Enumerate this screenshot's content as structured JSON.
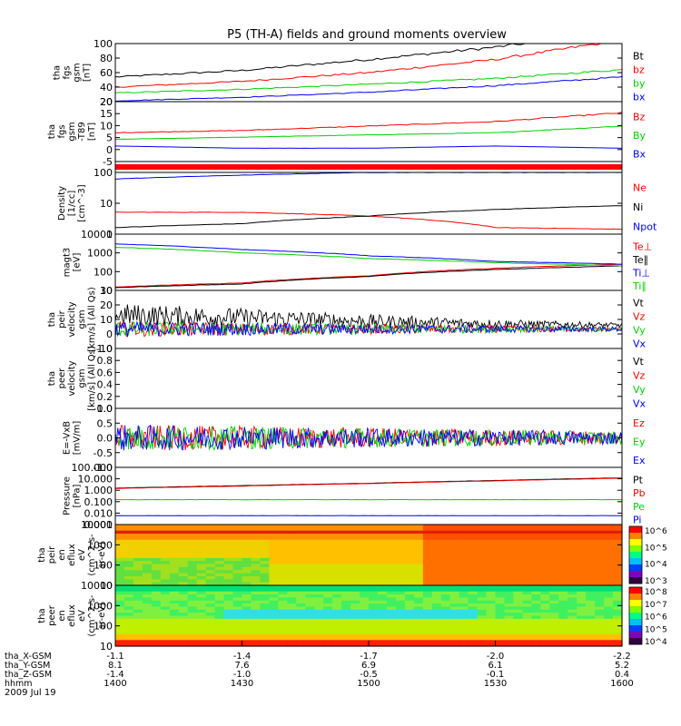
{
  "title": "P5 (TH-A) fields and ground moments overview",
  "colors": {
    "black": "#000000",
    "red": "#ff0000",
    "green": "#00d000",
    "blue": "#0000ff"
  },
  "panels": [
    {
      "id": "fgs",
      "ylabel": [
        "tha",
        "fgs",
        "gsm",
        "[nT]"
      ],
      "yticks": [
        "20",
        "40",
        "60",
        "80",
        "100"
      ],
      "legend": [
        {
          "label": "Bt",
          "color": "black"
        },
        {
          "label": "bz",
          "color": "red"
        },
        {
          "label": "by",
          "color": "green"
        },
        {
          "label": "bx",
          "color": "blue"
        }
      ]
    },
    {
      "id": "fgs_t89",
      "ylabel": [
        "tha",
        "fgs",
        "gsm",
        "-T89",
        "[nT]"
      ],
      "yticks": [
        "-5",
        "0",
        "5",
        "10",
        "15",
        "20"
      ],
      "legend": [
        {
          "label": "Bz",
          "color": "red"
        },
        {
          "label": "By",
          "color": "green"
        },
        {
          "label": "Bx",
          "color": "blue"
        }
      ]
    },
    {
      "id": "flag",
      "ylabel": [],
      "yticks": [],
      "legend": []
    },
    {
      "id": "density",
      "ylabel": [
        "Density",
        "[1/cc]",
        "[cm^-3]"
      ],
      "yticks": [
        "1",
        "10",
        "100"
      ],
      "legend": [
        {
          "label": "Ne",
          "color": "red"
        },
        {
          "label": "Ni",
          "color": "black"
        },
        {
          "label": "Npot",
          "color": "blue"
        }
      ]
    },
    {
      "id": "temp",
      "ylabel": [
        "magt3",
        "[eV]"
      ],
      "yticks": [
        "10",
        "100",
        "1000",
        "10000"
      ],
      "legend": [
        {
          "label": "Te⊥",
          "color": "red"
        },
        {
          "label": "Te∥",
          "color": "black"
        },
        {
          "label": "Ti⊥",
          "color": "blue"
        },
        {
          "label": "Ti∥",
          "color": "green"
        }
      ]
    },
    {
      "id": "peir_vel",
      "ylabel": [
        "tha",
        "peir",
        "velocity",
        "gsm",
        "[km/s] (All Qs)"
      ],
      "yticks": [
        "-10",
        "0",
        "10",
        "20",
        "30"
      ],
      "legend": [
        {
          "label": "Vt",
          "color": "black"
        },
        {
          "label": "Vz",
          "color": "red"
        },
        {
          "label": "Vy",
          "color": "green"
        },
        {
          "label": "Vx",
          "color": "blue"
        }
      ]
    },
    {
      "id": "peer_vel",
      "ylabel": [
        "tha",
        "peer",
        "velocity",
        "gsm",
        "[km/s] (All Qs)"
      ],
      "yticks": [
        "0.0",
        "0.2",
        "0.4",
        "0.6",
        "0.8",
        "1.0"
      ],
      "legend": [
        {
          "label": "Vt",
          "color": "black"
        },
        {
          "label": "Vz",
          "color": "red"
        },
        {
          "label": "Vy",
          "color": "green"
        },
        {
          "label": "Vx",
          "color": "blue"
        }
      ]
    },
    {
      "id": "efield",
      "ylabel": [
        "E=-VxB",
        "[mV/m]"
      ],
      "yticks": [
        "-1.0",
        "-0.5",
        "0.0",
        "0.5",
        "1.0"
      ],
      "legend": [
        {
          "label": "Ez",
          "color": "red"
        },
        {
          "label": "Ey",
          "color": "green"
        },
        {
          "label": "Ex",
          "color": "blue"
        }
      ]
    },
    {
      "id": "pressure",
      "ylabel": [
        "Pressure",
        "[nPa]"
      ],
      "yticks": [
        "0.001",
        "0.010",
        "0.100",
        "1.000",
        "10.000",
        "100.000"
      ],
      "legend": [
        {
          "label": "Pt",
          "color": "black"
        },
        {
          "label": "Pb",
          "color": "red"
        },
        {
          "label": "Pe",
          "color": "green"
        },
        {
          "label": "Pi",
          "color": "blue"
        }
      ]
    },
    {
      "id": "peir_eflux",
      "ylabel": [
        "tha",
        "peir",
        "en",
        "eflux",
        "eV",
        "(cm^2-s-",
        "sr-eV)"
      ],
      "yticks": [
        "10",
        "100",
        "1000",
        "10000"
      ],
      "colorbar": [
        "10^3",
        "10^4",
        "10^5",
        "10^6"
      ],
      "legend": []
    },
    {
      "id": "peer_eflux",
      "ylabel": [
        "tha",
        "peer",
        "en",
        "eflux",
        "eV",
        "(cm^2-s-",
        "sr-eV)"
      ],
      "yticks": [
        "10",
        "100",
        "1000",
        "10000"
      ],
      "colorbar": [
        "10^4",
        "10^5",
        "10^6",
        "10^7",
        "10^8"
      ],
      "legend": []
    }
  ],
  "xaxis": {
    "rows": [
      {
        "label": "tha_X-GSM",
        "values": [
          "-1.1",
          "-1.4",
          "-1.7",
          "-2.0",
          "-2.2"
        ]
      },
      {
        "label": "tha_Y-GSM",
        "values": [
          "8.1",
          "7.6",
          "6.9",
          "6.1",
          "5.2"
        ]
      },
      {
        "label": "tha_Z-GSM",
        "values": [
          "-1.4",
          "-1.0",
          "-0.5",
          "-0.1",
          "0.4"
        ]
      },
      {
        "label": "hhmm",
        "values": [
          "1400",
          "1430",
          "1500",
          "1530",
          "1600"
        ]
      }
    ],
    "date": "2009 Jul 19"
  },
  "chart_data": {
    "type": "line",
    "title": "P5 (TH-A) fields and ground moments overview",
    "x": [
      "1400",
      "1430",
      "1500",
      "1530",
      "1600"
    ],
    "panels": [
      {
        "id": "fgs",
        "ylim": [
          20,
          100
        ],
        "series": [
          {
            "name": "Bt",
            "values": [
              54,
              63,
              78,
              95,
              118
            ]
          },
          {
            "name": "bz",
            "values": [
              40,
              48,
              60,
              78,
              105
            ]
          },
          {
            "name": "by",
            "values": [
              32,
              37,
              44,
              52,
              64
            ]
          },
          {
            "name": "bx",
            "values": [
              21,
              26,
              33,
              42,
              54
            ]
          }
        ]
      },
      {
        "id": "fgs_t89",
        "ylim": [
          -7,
          20
        ],
        "series": [
          {
            "name": "Bz",
            "values": [
              6,
              7,
              9,
              11,
              15
            ]
          },
          {
            "name": "By",
            "values": [
              3,
              4,
              5,
              6,
              9
            ]
          },
          {
            "name": "Bx",
            "values": [
              0,
              -1,
              -1,
              0,
              -1
            ]
          }
        ]
      },
      {
        "id": "density",
        "ylim": [
          0.3,
          200
        ],
        "log": true,
        "series": [
          {
            "name": "Ne",
            "values": [
              3,
              3,
              2,
              0.6,
              0.5
            ]
          },
          {
            "name": "Ni",
            "values": [
              0.6,
              0.9,
              2,
              4,
              6
            ]
          },
          {
            "name": "Npot",
            "values": [
              100,
              150,
              200,
              200,
              200
            ]
          }
        ]
      },
      {
        "id": "temp",
        "ylim": [
          10,
          10000
        ],
        "log": true,
        "series": [
          {
            "name": "Te⊥",
            "values": [
              15,
              25,
              60,
              150,
              250
            ]
          },
          {
            "name": "Te∥",
            "values": [
              14,
              22,
              55,
              130,
              200
            ]
          },
          {
            "name": "Ti⊥",
            "values": [
              3000,
              1500,
              700,
              350,
              250
            ]
          },
          {
            "name": "Ti∥",
            "values": [
              2000,
              1000,
              500,
              300,
              200
            ]
          }
        ]
      },
      {
        "id": "peir_vel",
        "ylim": [
          -15,
          30
        ],
        "series": [
          {
            "name": "Vt",
            "values": [
              10,
              8,
              5,
              3,
              2
            ]
          },
          {
            "name": "Vz",
            "values": [
              0,
              0,
              0,
              0,
              0
            ]
          },
          {
            "name": "Vy",
            "values": [
              0,
              0,
              0,
              0,
              0
            ]
          },
          {
            "name": "Vx",
            "values": [
              0,
              0,
              0,
              0,
              0
            ]
          }
        ]
      },
      {
        "id": "efield",
        "ylim": [
          -1,
          1
        ],
        "series": [
          {
            "name": "Ez",
            "values": [
              0,
              0,
              0,
              0,
              0
            ]
          },
          {
            "name": "Ey",
            "values": [
              0,
              0,
              0,
              0,
              0
            ]
          },
          {
            "name": "Ex",
            "values": [
              0,
              0,
              0,
              0,
              0
            ]
          }
        ]
      },
      {
        "id": "pressure",
        "ylim": [
          0.001,
          100
        ],
        "log": true,
        "series": [
          {
            "name": "Pt",
            "values": [
              1.5,
              2.5,
              4,
              7,
              12
            ]
          },
          {
            "name": "Pb",
            "values": [
              1.4,
              2.3,
              3.8,
              6.5,
              11
            ]
          },
          {
            "name": "Pe",
            "values": [
              0.15,
              0.15,
              0.15,
              0.15,
              0.15
            ]
          },
          {
            "name": "Pi",
            "values": [
              0.006,
              0.006,
              0.006,
              0.006,
              0.006
            ]
          }
        ]
      }
    ]
  }
}
